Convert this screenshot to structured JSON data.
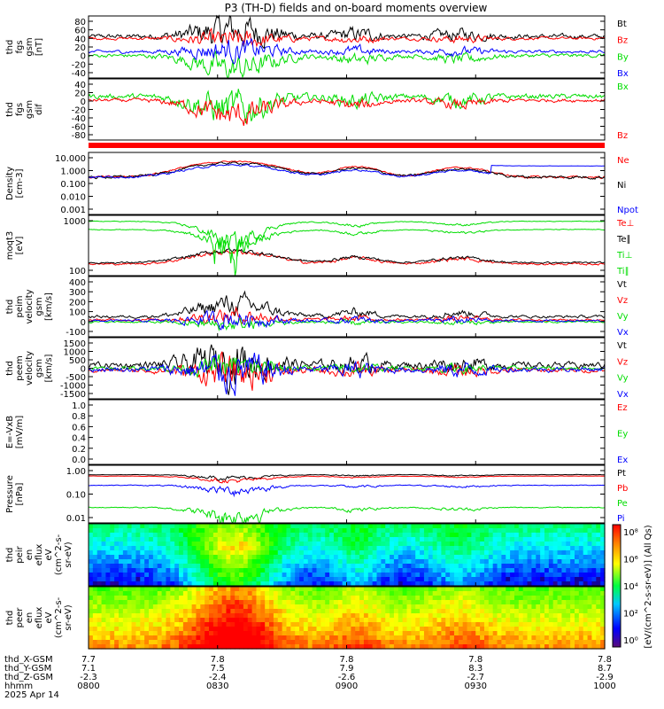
{
  "title": "P3 (TH-D) fields and on-board moments overview",
  "colors": {
    "black": "#000000",
    "red": "#ff0000",
    "green": "#00dd00",
    "blue": "#0000ff"
  },
  "chart_data": [
    {
      "type": "line",
      "ylabel": [
        "thd",
        "fgs",
        "gsm",
        "[nT]"
      ],
      "yticks": [
        "80",
        "60",
        "40",
        "20",
        "0",
        "-20",
        "-40"
      ],
      "ylim": [
        -45,
        85
      ],
      "legend": [
        {
          "label": "Bt",
          "color": "#000000"
        },
        {
          "label": "Bz",
          "color": "#ff0000"
        },
        {
          "label": "By",
          "color": "#00dd00"
        },
        {
          "label": "Bx",
          "color": "#0000ff"
        }
      ]
    },
    {
      "type": "line",
      "ylabel": [
        "thd",
        "fgs",
        "gsm",
        "dif"
      ],
      "yticks": [
        "40",
        "20",
        "0",
        "-20",
        "-40",
        "-60",
        "-80"
      ],
      "ylim": [
        -95,
        45
      ],
      "legend": [
        {
          "label": "Bx",
          "color": "#00dd00"
        },
        {
          "label": "Bz",
          "color": "#ff0000"
        }
      ]
    },
    {
      "type": "line",
      "ylabel": [
        "Density",
        "[cm-3]"
      ],
      "yticks": [
        "10.000",
        "1.000",
        "0.100",
        "0.010",
        "0.001"
      ],
      "ylim": [
        0.0005,
        20
      ],
      "scale": "log",
      "legend": [
        {
          "label": "Ne",
          "color": "#ff0000"
        },
        {
          "label": "Ni",
          "color": "#000000"
        },
        {
          "label": "Npot",
          "color": "#0000ff"
        }
      ]
    },
    {
      "type": "line",
      "ylabel": [
        "moqt3",
        "[eV]"
      ],
      "yticks": [
        "1000",
        "100"
      ],
      "ylim": [
        30,
        5000
      ],
      "scale": "log",
      "legend": [
        {
          "label": "Te⊥",
          "color": "#ff0000"
        },
        {
          "label": "Te∥",
          "color": "#000000"
        },
        {
          "label": "Ti⊥",
          "color": "#00dd00"
        },
        {
          "label": "Ti∥",
          "color": "#00dd00"
        }
      ]
    },
    {
      "type": "line",
      "ylabel": [
        "thd",
        "peim",
        "velocity",
        "gsm",
        "[km/s]"
      ],
      "yticks": [
        "400",
        "300",
        "200",
        "100",
        "0",
        "-100"
      ],
      "ylim": [
        -150,
        420
      ],
      "legend": [
        {
          "label": "Vt",
          "color": "#000000"
        },
        {
          "label": "Vz",
          "color": "#ff0000"
        },
        {
          "label": "Vy",
          "color": "#00dd00"
        },
        {
          "label": "Vx",
          "color": "#0000ff"
        }
      ]
    },
    {
      "type": "line",
      "ylabel": [
        "thd",
        "peem",
        "velocity",
        "gsm",
        "[km/s]"
      ],
      "yticks": [
        "1500",
        "1000",
        "500",
        "0",
        "-500",
        "-1000",
        "-1500"
      ],
      "ylim": [
        -1500,
        1500
      ],
      "legend": [
        {
          "label": "Vt",
          "color": "#000000"
        },
        {
          "label": "Vz",
          "color": "#ff0000"
        },
        {
          "label": "Vy",
          "color": "#00dd00"
        },
        {
          "label": "Vx",
          "color": "#0000ff"
        }
      ]
    },
    {
      "type": "line",
      "ylabel": [
        "E=-VxB",
        "[mV/m]"
      ],
      "yticks": [
        "1.0",
        "0.8",
        "0.6",
        "0.4",
        "0.2",
        "0.0"
      ],
      "ylim": [
        0,
        1
      ],
      "legend": [
        {
          "label": "Ez",
          "color": "#ff0000"
        },
        {
          "label": "Ey",
          "color": "#00dd00"
        },
        {
          "label": "Ex",
          "color": "#0000ff"
        }
      ]
    },
    {
      "type": "line",
      "ylabel": [
        "Pressure",
        "[nPa]"
      ],
      "yticks": [
        "1.00",
        "0.10",
        "0.01"
      ],
      "ylim": [
        0.005,
        2
      ],
      "scale": "log",
      "legend": [
        {
          "label": "Pt",
          "color": "#000000"
        },
        {
          "label": "Pb",
          "color": "#ff0000"
        },
        {
          "label": "Pe",
          "color": "#00dd00"
        },
        {
          "label": "Pi",
          "color": "#0000ff"
        }
      ]
    },
    {
      "type": "heatmap",
      "ylabel": [
        "thd",
        "peir",
        "en",
        "eflux",
        "eV",
        "(cm^2-s-",
        "sr-eV)"
      ],
      "yticks": [
        "10000",
        "1000",
        "100",
        "10"
      ]
    },
    {
      "type": "heatmap",
      "ylabel": [
        "thd",
        "peer",
        "en",
        "eflux",
        "eV",
        "(cm^2-s-",
        "sr-eV)"
      ],
      "yticks": [
        "10000",
        "1000",
        "100",
        "10"
      ]
    }
  ],
  "colorbar": {
    "label": "[eV/(cm^2-s-sr-eV)] (All Qs)",
    "ticks": [
      "10⁸",
      "10⁶",
      "10⁴",
      "10²",
      "10⁰"
    ]
  },
  "xaxis": {
    "rows": [
      {
        "label": "thd_X-GSM",
        "values": [
          "7.7",
          "7.8",
          "7.8",
          "7.8",
          "7.8"
        ]
      },
      {
        "label": "thd_Y-GSM",
        "values": [
          "7.1",
          "7.5",
          "7.9",
          "8.3",
          "8.7"
        ]
      },
      {
        "label": "thd_Z-GSM",
        "values": [
          "-2.3",
          "-2.4",
          "-2.6",
          "-2.7",
          "-2.9"
        ]
      },
      {
        "label": "hhmm",
        "values": [
          "0800",
          "0830",
          "0900",
          "0930",
          "1000"
        ]
      }
    ],
    "date": "2025 Apr 14"
  }
}
